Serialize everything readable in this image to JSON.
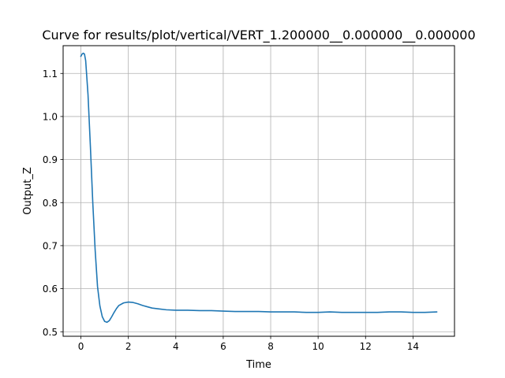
{
  "chart_data": {
    "type": "line",
    "title": "Curve for results/plot/vertical/VERT_1.200000__0.000000__0.000000",
    "xlabel": "Time",
    "ylabel": "Output_Z",
    "xlim": [
      -0.75,
      15.75
    ],
    "ylim": [
      0.4895,
      1.1645
    ],
    "xticks": [
      0,
      2,
      4,
      6,
      8,
      10,
      12,
      14
    ],
    "yticks": [
      0.5,
      0.6,
      0.7,
      0.8,
      0.9,
      1.0,
      1.1
    ],
    "ytick_labels": [
      "0.5",
      "0.6",
      "0.7",
      "0.8",
      "0.9",
      "1.0",
      "1.1"
    ],
    "grid": true,
    "series": [
      {
        "color": "#1f77b4",
        "x": [
          0.0,
          0.05,
          0.1,
          0.15,
          0.2,
          0.3,
          0.4,
          0.5,
          0.6,
          0.7,
          0.8,
          0.9,
          1.0,
          1.1,
          1.2,
          1.3,
          1.4,
          1.5,
          1.6,
          1.8,
          2.0,
          2.2,
          2.4,
          2.6,
          2.8,
          3.0,
          3.3,
          3.6,
          4.0,
          4.5,
          5.0,
          5.5,
          6.0,
          6.5,
          7.0,
          7.5,
          8.0,
          8.5,
          9.0,
          9.5,
          10.0,
          10.5,
          11.0,
          11.5,
          12.0,
          12.5,
          13.0,
          13.5,
          14.0,
          14.5,
          15.0
        ],
        "y": [
          1.14,
          1.145,
          1.147,
          1.145,
          1.13,
          1.05,
          0.93,
          0.8,
          0.69,
          0.605,
          0.56,
          0.535,
          0.524,
          0.522,
          0.526,
          0.535,
          0.545,
          0.554,
          0.561,
          0.567,
          0.569,
          0.568,
          0.565,
          0.561,
          0.558,
          0.555,
          0.553,
          0.551,
          0.55,
          0.55,
          0.549,
          0.549,
          0.548,
          0.547,
          0.547,
          0.547,
          0.546,
          0.546,
          0.546,
          0.545,
          0.545,
          0.546,
          0.545,
          0.545,
          0.545,
          0.545,
          0.546,
          0.546,
          0.545,
          0.545,
          0.546
        ]
      }
    ]
  }
}
